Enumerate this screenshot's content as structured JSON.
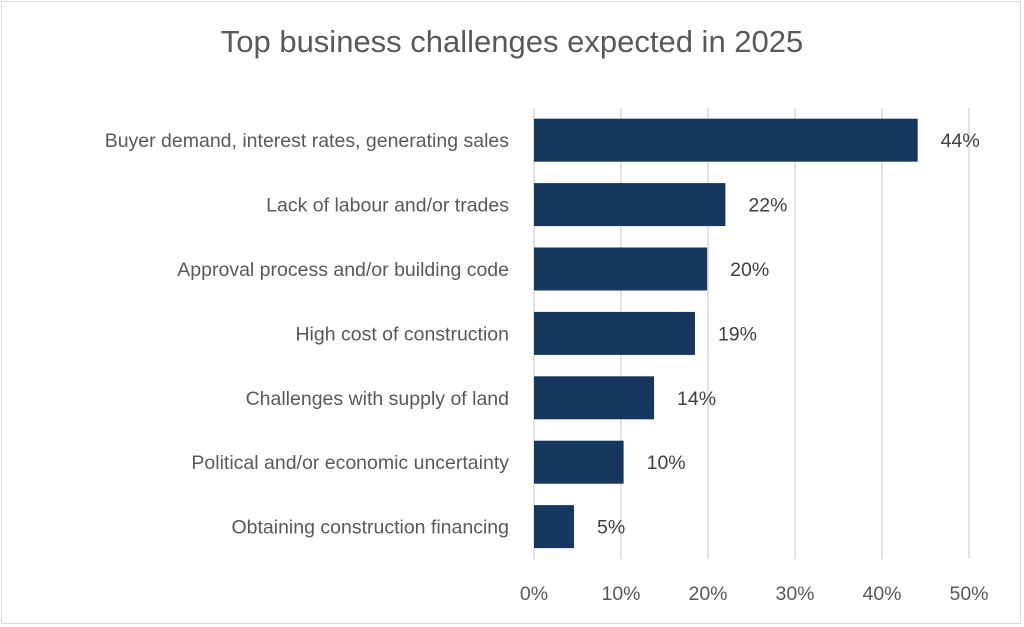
{
  "chart_data": {
    "type": "bar",
    "orientation": "horizontal",
    "title": "Top business challenges expected in 2025",
    "categories": [
      "Buyer demand, interest rates, generating sales",
      "Lack of labour and/or trades",
      "Approval process and/or building code",
      "High cost of construction",
      "Challenges with supply of land",
      "Political and/or economic uncertainty",
      "Obtaining construction financing"
    ],
    "values": [
      44.1,
      22.0,
      19.9,
      18.5,
      13.8,
      10.3,
      4.6
    ],
    "data_labels": [
      "44%",
      "22%",
      "20%",
      "19%",
      "14%",
      "10%",
      "5%"
    ],
    "xlim": [
      0,
      50
    ],
    "x_ticks": [
      "0%",
      "10%",
      "20%",
      "30%",
      "40%",
      "50%"
    ],
    "xlabel": "",
    "ylabel": "",
    "grid": "vertical",
    "legend": "none",
    "bar_color": "#17375e"
  }
}
